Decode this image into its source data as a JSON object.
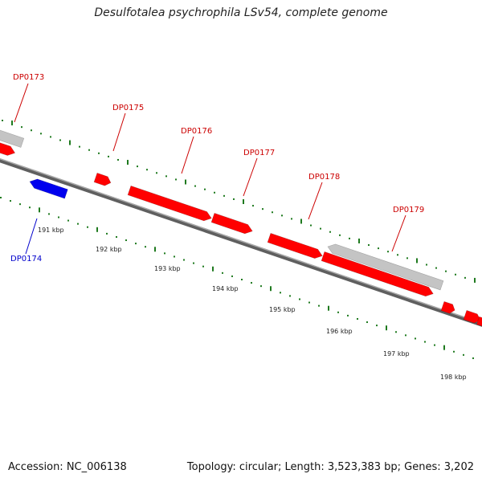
{
  "header": {
    "title": "Desulfotalea psychrophila LSv54, complete genome"
  },
  "footer": {
    "accession": "Accession: NC_006138",
    "summary": "Topology: circular; Length: 3,523,383 bp; Genes: 3,202"
  },
  "colors": {
    "forward_gene": "#ff0000",
    "forward_gene_label": "#cc0000",
    "reverse_gene": "#0000ee",
    "reverse_gene_label": "#0000cc",
    "other_feature": "#c4c4c4",
    "tick": "#1f7a1f",
    "backbone": "#7a7a7a"
  },
  "gene_labels": [
    {
      "id": "DP0173",
      "strand": "forward"
    },
    {
      "id": "DP0174",
      "strand": "reverse"
    },
    {
      "id": "DP0175",
      "strand": "forward"
    },
    {
      "id": "DP0176",
      "strand": "forward"
    },
    {
      "id": "DP0177",
      "strand": "forward"
    },
    {
      "id": "DP0178",
      "strand": "forward"
    },
    {
      "id": "DP0179",
      "strand": "forward"
    }
  ],
  "scale_labels": [
    "191 kbp",
    "192 kbp",
    "193 kbp",
    "194 kbp",
    "195 kbp",
    "196 kbp",
    "197 kbp",
    "198 kbp"
  ]
}
